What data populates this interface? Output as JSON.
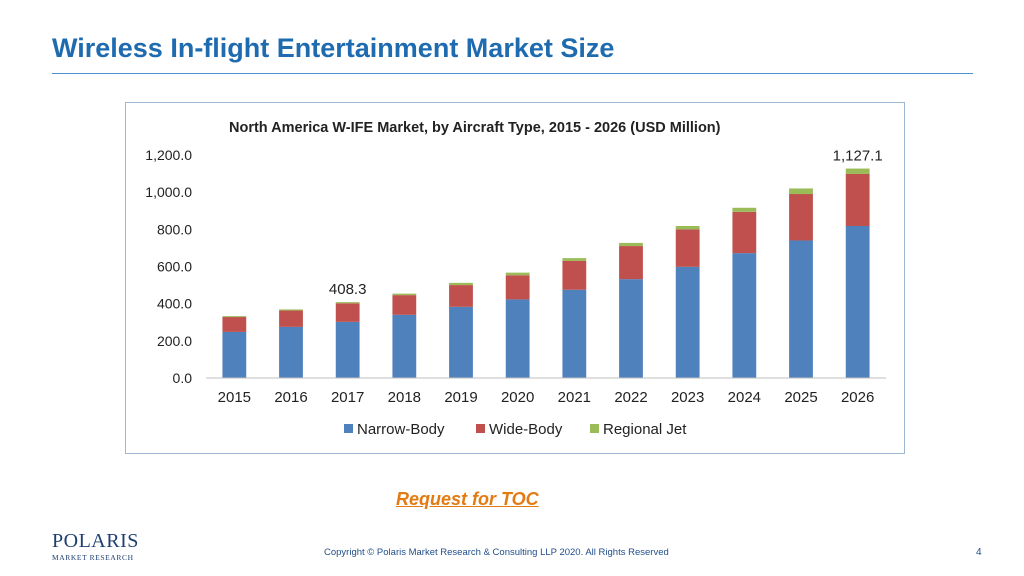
{
  "slide": {
    "title": "Wireless In-flight Entertainment Market Size",
    "toc_link": "Request for TOC",
    "copyright": "Copyright © Polaris Market Research & Consulting LLP 2020. All Rights Reserved",
    "page_number": "4",
    "logo": {
      "name": "POLARIS",
      "subtitle": "MARKET RESEARCH"
    },
    "title_color": "#1f6bb0",
    "link_color": "#e37a12"
  },
  "chart_data": {
    "type": "bar",
    "stacked": true,
    "title": "North America W-IFE Market, by Aircraft Type, 2015 - 2026 (USD Million)",
    "xlabel": "",
    "ylabel": "",
    "ylim": [
      0,
      1200
    ],
    "yticks": [
      0,
      200,
      400,
      600,
      800,
      1000,
      1200
    ],
    "ytick_labels": [
      "0.0",
      "200.0",
      "400.0",
      "600.0",
      "800.0",
      "1,000.0",
      "1,200.0"
    ],
    "categories": [
      "2015",
      "2016",
      "2017",
      "2018",
      "2019",
      "2020",
      "2021",
      "2022",
      "2023",
      "2024",
      "2025",
      "2026"
    ],
    "series": [
      {
        "name": "Narrow-Body",
        "color": "#4f81bd",
        "values": [
          248,
          275,
          302,
          340,
          383,
          423,
          475,
          532,
          598,
          672,
          740,
          818
        ]
      },
      {
        "name": "Wide-Body",
        "color": "#c0504d",
        "values": [
          80,
          88,
          100,
          106,
          117,
          130,
          155,
          178,
          202,
          222,
          250,
          280
        ]
      },
      {
        "name": "Regional Jet",
        "color": "#9bbb59",
        "values": [
          5,
          6,
          6.3,
          8,
          12,
          14,
          15,
          17,
          18,
          22,
          30,
          29.1
        ]
      }
    ],
    "data_labels": [
      {
        "category": "2017",
        "text": "408.3"
      },
      {
        "category": "2026",
        "text": "1,127.1"
      }
    ],
    "grid": false,
    "legend_position": "bottom"
  }
}
